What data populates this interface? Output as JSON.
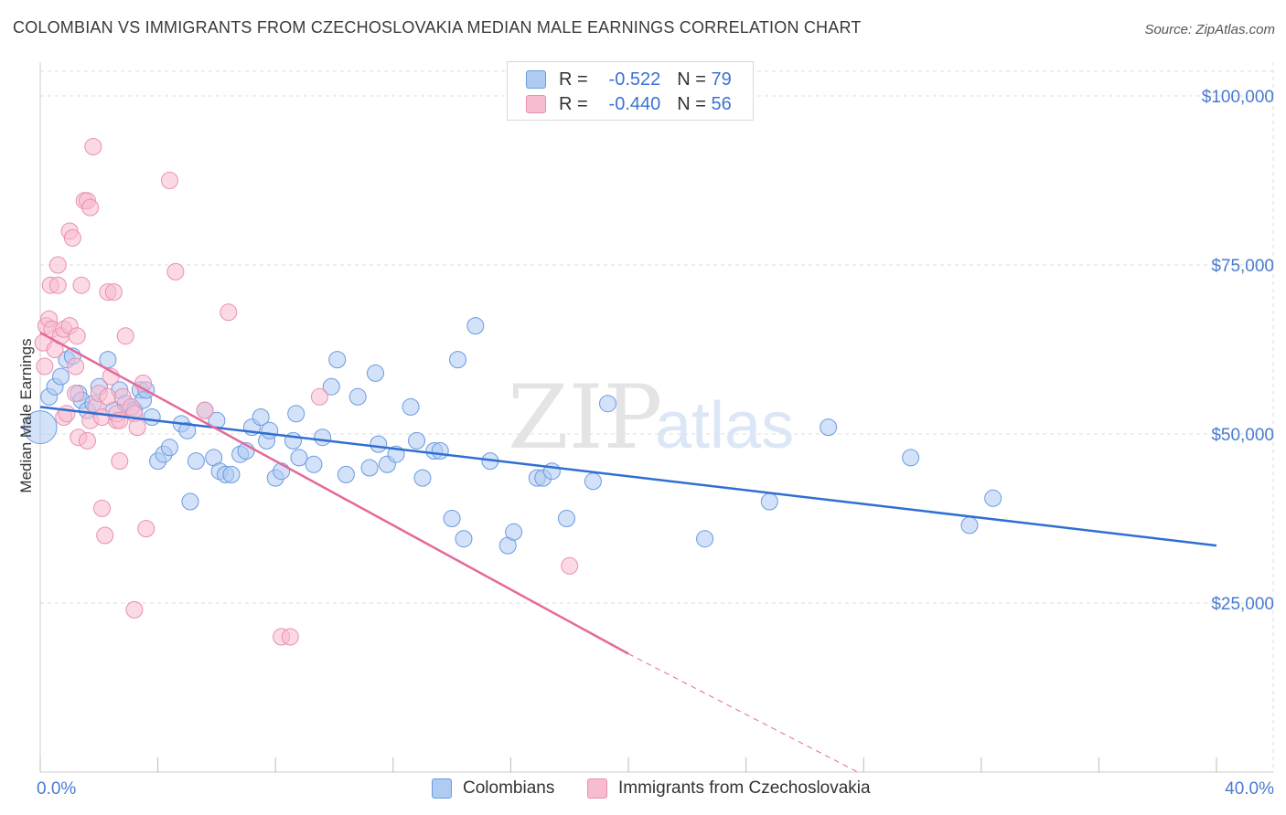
{
  "title": "COLOMBIAN VS IMMIGRANTS FROM CZECHOSLOVAKIA MEDIAN MALE EARNINGS CORRELATION CHART",
  "source": "Source: ZipAtlas.com",
  "watermark": {
    "zip": "ZIP",
    "atlas": "atlas"
  },
  "legend_top": {
    "rows": [
      {
        "r_label": "R =",
        "r_value": "-0.522",
        "n_label": "N =",
        "n_value": "79"
      },
      {
        "r_label": "R =",
        "r_value": "-0.440",
        "n_label": "N =",
        "n_value": "56"
      }
    ]
  },
  "legend_bottom": {
    "series_a": "Colombians",
    "series_b": "Immigrants from Czechoslovakia"
  },
  "colors": {
    "blue_fill": "#aecbf2",
    "blue_stroke": "#6a9be0",
    "blue_line": "#2f6fd1",
    "pink_fill": "#f7bcd0",
    "pink_stroke": "#ea8fb0",
    "pink_line": "#e5699a",
    "grid": "#dddddd",
    "axis_text": "#4a7bd0"
  },
  "chart_data": {
    "type": "scatter",
    "title": "COLOMBIAN VS IMMIGRANTS FROM CZECHOSLOVAKIA MEDIAN MALE EARNINGS CORRELATION CHART",
    "xlabel": "",
    "ylabel": "Median Male Earnings",
    "xlim": [
      0,
      40
    ],
    "ylim": [
      0,
      105000
    ],
    "x_tick_labels": [
      "0.0%",
      "40.0%"
    ],
    "y_ticks": [
      25000,
      50000,
      75000,
      100000
    ],
    "y_tick_labels": [
      "$25,000",
      "$50,000",
      "$75,000",
      "$100,000"
    ],
    "series": [
      {
        "name": "Colombians",
        "r": -0.522,
        "n": 79,
        "trend": {
          "x0": 0,
          "y0": 54000,
          "x1": 40,
          "y1": 33500
        },
        "points": [
          [
            0.0,
            51000
          ],
          [
            0.3,
            55500
          ],
          [
            0.5,
            57000
          ],
          [
            0.7,
            58500
          ],
          [
            0.9,
            61000
          ],
          [
            1.1,
            61500
          ],
          [
            1.3,
            56000
          ],
          [
            1.4,
            55000
          ],
          [
            1.6,
            53500
          ],
          [
            1.8,
            54500
          ],
          [
            2.0,
            57000
          ],
          [
            2.3,
            61000
          ],
          [
            2.5,
            53500
          ],
          [
            2.7,
            56500
          ],
          [
            2.9,
            54500
          ],
          [
            3.2,
            53500
          ],
          [
            3.4,
            56500
          ],
          [
            3.5,
            55000
          ],
          [
            3.6,
            56500
          ],
          [
            3.8,
            52500
          ],
          [
            4.0,
            46000
          ],
          [
            4.2,
            47000
          ],
          [
            4.4,
            48000
          ],
          [
            4.8,
            51500
          ],
          [
            5.0,
            50500
          ],
          [
            5.1,
            40000
          ],
          [
            5.3,
            46000
          ],
          [
            5.6,
            53500
          ],
          [
            5.9,
            46500
          ],
          [
            6.0,
            52000
          ],
          [
            6.1,
            44500
          ],
          [
            6.3,
            44000
          ],
          [
            6.5,
            44000
          ],
          [
            6.8,
            47000
          ],
          [
            7.0,
            47500
          ],
          [
            7.2,
            51000
          ],
          [
            7.5,
            52500
          ],
          [
            7.7,
            49000
          ],
          [
            7.8,
            50500
          ],
          [
            8.0,
            43500
          ],
          [
            8.2,
            44500
          ],
          [
            8.6,
            49000
          ],
          [
            8.8,
            46500
          ],
          [
            8.7,
            53000
          ],
          [
            9.3,
            45500
          ],
          [
            9.6,
            49500
          ],
          [
            9.9,
            57000
          ],
          [
            10.1,
            61000
          ],
          [
            10.4,
            44000
          ],
          [
            10.8,
            55500
          ],
          [
            11.2,
            45000
          ],
          [
            11.4,
            59000
          ],
          [
            11.5,
            48500
          ],
          [
            11.8,
            45500
          ],
          [
            12.1,
            47000
          ],
          [
            12.6,
            54000
          ],
          [
            12.8,
            49000
          ],
          [
            13.0,
            43500
          ],
          [
            13.4,
            47500
          ],
          [
            13.6,
            47500
          ],
          [
            14.0,
            37500
          ],
          [
            14.2,
            61000
          ],
          [
            14.4,
            34500
          ],
          [
            14.8,
            66000
          ],
          [
            15.3,
            46000
          ],
          [
            15.9,
            33500
          ],
          [
            16.1,
            35500
          ],
          [
            16.9,
            43500
          ],
          [
            17.1,
            43500
          ],
          [
            17.4,
            44500
          ],
          [
            17.9,
            37500
          ],
          [
            18.8,
            43000
          ],
          [
            19.3,
            54500
          ],
          [
            22.6,
            34500
          ],
          [
            24.8,
            40000
          ],
          [
            26.8,
            51000
          ],
          [
            29.6,
            46500
          ],
          [
            31.6,
            36500
          ],
          [
            32.4,
            40500
          ]
        ]
      },
      {
        "name": "Immigrants from Czechoslovakia",
        "r": -0.44,
        "n": 56,
        "trend": {
          "x0": 0,
          "y0": 65000,
          "x1": 20,
          "y1": 17500
        },
        "trend_dashed": {
          "x0": 20,
          "y0": 17500,
          "x1": 27.8,
          "y1": 0
        },
        "points": [
          [
            0.1,
            63500
          ],
          [
            0.2,
            66000
          ],
          [
            0.3,
            67000
          ],
          [
            0.35,
            72000
          ],
          [
            0.4,
            65500
          ],
          [
            0.5,
            62500
          ],
          [
            0.6,
            72000
          ],
          [
            0.6,
            75000
          ],
          [
            0.7,
            64500
          ],
          [
            0.8,
            65500
          ],
          [
            0.8,
            52500
          ],
          [
            0.9,
            53000
          ],
          [
            1.0,
            66000
          ],
          [
            1.0,
            80000
          ],
          [
            1.1,
            79000
          ],
          [
            1.2,
            60000
          ],
          [
            1.2,
            56000
          ],
          [
            1.3,
            49500
          ],
          [
            1.4,
            72000
          ],
          [
            1.5,
            84500
          ],
          [
            1.6,
            84500
          ],
          [
            1.6,
            49000
          ],
          [
            1.7,
            52000
          ],
          [
            1.7,
            83500
          ],
          [
            1.8,
            92500
          ],
          [
            1.9,
            54000
          ],
          [
            2.0,
            56000
          ],
          [
            2.1,
            52500
          ],
          [
            2.1,
            39000
          ],
          [
            2.2,
            35000
          ],
          [
            2.3,
            55500
          ],
          [
            2.3,
            71000
          ],
          [
            2.4,
            58500
          ],
          [
            2.5,
            71000
          ],
          [
            2.6,
            52000
          ],
          [
            2.6,
            53000
          ],
          [
            2.7,
            52000
          ],
          [
            2.7,
            46000
          ],
          [
            2.8,
            55500
          ],
          [
            2.9,
            64500
          ],
          [
            3.1,
            54000
          ],
          [
            3.2,
            53000
          ],
          [
            3.2,
            24000
          ],
          [
            3.3,
            51000
          ],
          [
            3.5,
            57500
          ],
          [
            3.6,
            36000
          ],
          [
            4.4,
            87500
          ],
          [
            4.6,
            74000
          ],
          [
            5.6,
            53500
          ],
          [
            6.4,
            68000
          ],
          [
            8.2,
            20000
          ],
          [
            8.5,
            20000
          ],
          [
            9.5,
            55500
          ],
          [
            18.0,
            30500
          ],
          [
            0.15,
            60000
          ],
          [
            1.25,
            64500
          ]
        ]
      }
    ]
  }
}
